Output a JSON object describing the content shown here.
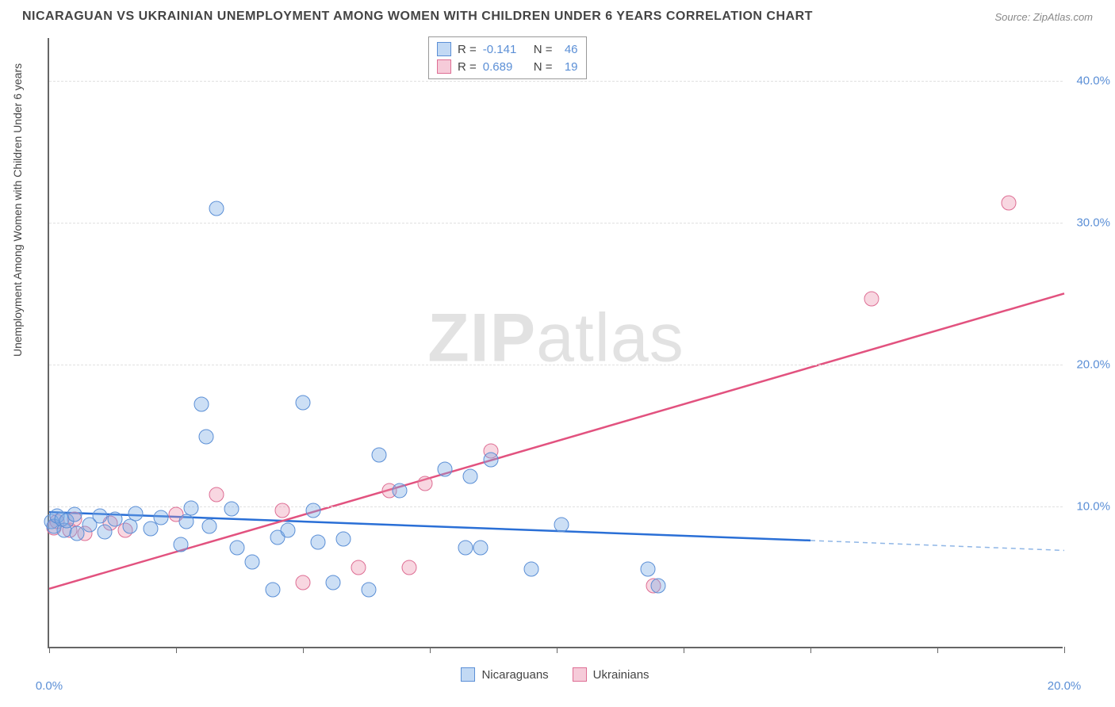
{
  "title": "NICARAGUAN VS UKRAINIAN UNEMPLOYMENT AMONG WOMEN WITH CHILDREN UNDER 6 YEARS CORRELATION CHART",
  "source": "Source: ZipAtlas.com",
  "y_axis_label": "Unemployment Among Women with Children Under 6 years",
  "watermark_bold": "ZIP",
  "watermark_rest": "atlas",
  "chart": {
    "type": "scatter-correlation",
    "background_color": "#ffffff",
    "grid_color": "#e0e0e0",
    "axis_color": "#666666",
    "tick_label_color": "#5b8fd6",
    "title_color": "#444444",
    "title_fontsize": 16,
    "label_fontsize": 14,
    "tick_fontsize": 15,
    "xlim": [
      0,
      20
    ],
    "ylim": [
      0,
      43
    ],
    "x_ticks": [
      0,
      2.5,
      5,
      7.5,
      10,
      12.5,
      15,
      17.5,
      20
    ],
    "x_tick_labels": {
      "0": "0.0%",
      "20": "20.0%"
    },
    "y_gridlines": [
      10,
      20,
      30,
      40
    ],
    "y_tick_labels": {
      "10": "10.0%",
      "20": "20.0%",
      "30": "30.0%",
      "40": "40.0%"
    },
    "marker_size": 19,
    "series": {
      "nicaraguans": {
        "label": "Nicaraguans",
        "color_fill": "rgba(120,170,230,0.38)",
        "color_stroke": "#5b8fd6",
        "R": "-0.141",
        "N": "46",
        "regression": {
          "x1": 0,
          "y1": 9.6,
          "x2": 15,
          "y2": 7.6,
          "x2_dash": 20,
          "y2_dash": 6.9,
          "color": "#2a6fd6",
          "width": 2.5,
          "dash_color": "#8fb6e6"
        },
        "points": [
          [
            0.05,
            8.8
          ],
          [
            0.1,
            8.5
          ],
          [
            0.15,
            9.2
          ],
          [
            0.25,
            9.0
          ],
          [
            0.3,
            8.2
          ],
          [
            0.35,
            8.9
          ],
          [
            0.5,
            9.3
          ],
          [
            0.55,
            8.0
          ],
          [
            0.8,
            8.6
          ],
          [
            1.0,
            9.2
          ],
          [
            1.1,
            8.1
          ],
          [
            1.3,
            9.0
          ],
          [
            1.6,
            8.5
          ],
          [
            1.7,
            9.4
          ],
          [
            2.0,
            8.3
          ],
          [
            2.2,
            9.1
          ],
          [
            2.6,
            7.2
          ],
          [
            2.7,
            8.8
          ],
          [
            2.8,
            9.8
          ],
          [
            3.0,
            17.1
          ],
          [
            3.1,
            14.8
          ],
          [
            3.15,
            8.5
          ],
          [
            3.3,
            30.9
          ],
          [
            3.6,
            9.7
          ],
          [
            3.7,
            7.0
          ],
          [
            4.0,
            6.0
          ],
          [
            4.4,
            4.0
          ],
          [
            4.5,
            7.7
          ],
          [
            4.7,
            8.2
          ],
          [
            5.0,
            17.2
          ],
          [
            5.2,
            9.6
          ],
          [
            5.3,
            7.4
          ],
          [
            5.6,
            4.5
          ],
          [
            5.8,
            7.6
          ],
          [
            6.3,
            4.0
          ],
          [
            6.5,
            13.5
          ],
          [
            6.9,
            11.0
          ],
          [
            7.8,
            12.5
          ],
          [
            8.2,
            7.0
          ],
          [
            8.3,
            12.0
          ],
          [
            8.5,
            7.0
          ],
          [
            8.7,
            13.2
          ],
          [
            9.5,
            5.5
          ],
          [
            10.1,
            8.6
          ],
          [
            11.8,
            5.5
          ],
          [
            12.0,
            4.3
          ]
        ]
      },
      "ukrainians": {
        "label": "Ukrainians",
        "color_fill": "rgba(235,140,170,0.35)",
        "color_stroke": "#de6e94",
        "R": "0.689",
        "N": "19",
        "regression": {
          "x1": 0,
          "y1": 4.2,
          "x2": 20,
          "y2": 25.0,
          "color": "#e2527f",
          "width": 2.5
        },
        "points": [
          [
            0.1,
            8.4
          ],
          [
            0.15,
            8.8
          ],
          [
            0.4,
            8.2
          ],
          [
            0.5,
            9.0
          ],
          [
            0.7,
            8.0
          ],
          [
            1.2,
            8.7
          ],
          [
            1.5,
            8.2
          ],
          [
            2.5,
            9.3
          ],
          [
            3.3,
            10.7
          ],
          [
            4.6,
            9.6
          ],
          [
            5.0,
            4.5
          ],
          [
            6.1,
            5.6
          ],
          [
            6.7,
            11.0
          ],
          [
            7.1,
            5.6
          ],
          [
            7.4,
            11.5
          ],
          [
            8.7,
            13.8
          ],
          [
            11.9,
            4.3
          ],
          [
            16.2,
            24.5
          ],
          [
            18.9,
            31.3
          ]
        ]
      }
    },
    "legend_top": {
      "R_label": "R =",
      "N_label": "N ="
    }
  }
}
